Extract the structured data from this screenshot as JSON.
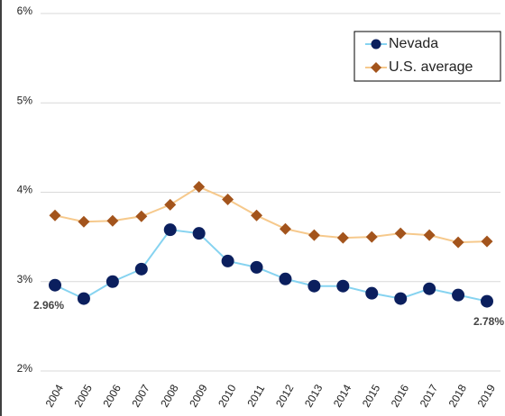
{
  "chart_data": {
    "type": "line",
    "categories": [
      "2004",
      "2005",
      "2006",
      "2007",
      "2008",
      "2009",
      "2010",
      "2011",
      "2012",
      "2013",
      "2014",
      "2015",
      "2016",
      "2017",
      "2018",
      "2019"
    ],
    "series": [
      {
        "name": "Nevada",
        "color": "#0b1f5e",
        "line_color": "#86d3f0",
        "marker": "circle",
        "values": [
          2.96,
          2.81,
          3.0,
          3.14,
          3.58,
          3.54,
          3.23,
          3.16,
          3.03,
          2.95,
          2.95,
          2.87,
          2.81,
          2.92,
          2.85,
          2.78
        ],
        "value_labels": [
          "2.96%",
          null,
          null,
          null,
          null,
          null,
          null,
          null,
          null,
          null,
          null,
          null,
          null,
          null,
          null,
          "2.78%"
        ]
      },
      {
        "name": "U.S. average",
        "color": "#a3541c",
        "line_color": "#f6c98c",
        "marker": "diamond",
        "values": [
          3.74,
          3.67,
          3.68,
          3.73,
          3.86,
          4.06,
          3.92,
          3.74,
          3.59,
          3.52,
          3.49,
          3.5,
          3.54,
          3.52,
          3.44,
          3.45
        ]
      }
    ],
    "ylim": [
      2,
      6
    ],
    "yticks": [
      {
        "value": 2,
        "label": "2%"
      },
      {
        "value": 3,
        "label": "3%"
      },
      {
        "value": 4,
        "label": "4%"
      },
      {
        "value": 5,
        "label": "5%"
      },
      {
        "value": 6,
        "label": "6%"
      }
    ],
    "grid": true,
    "legend": "upper-right"
  }
}
